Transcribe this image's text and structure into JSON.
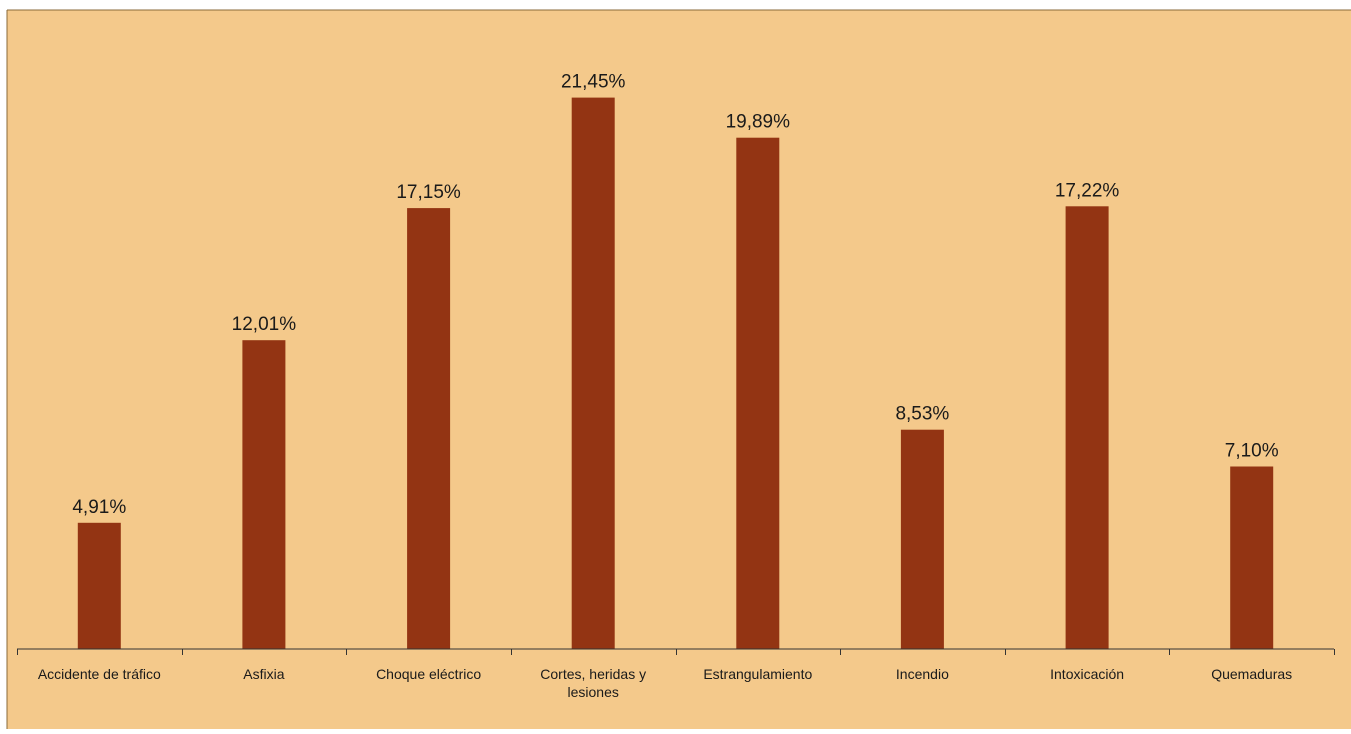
{
  "colors": {
    "plot_background": "#f4c98b",
    "bar": "#933413",
    "axis": "#333333",
    "text": "#1a1a1a"
  },
  "chart_data": {
    "type": "bar",
    "title": "",
    "xlabel": "",
    "ylabel": "",
    "ylim": [
      0,
      24
    ],
    "grid": false,
    "legend": "none",
    "categories": [
      [
        "Accidente de tráfico"
      ],
      [
        "Asfixia"
      ],
      [
        "Choque eléctrico"
      ],
      [
        "Cortes, heridas y",
        "lesiones"
      ],
      [
        "Estrangulamiento"
      ],
      [
        "Incendio"
      ],
      [
        "Intoxicación"
      ],
      [
        "Quemaduras"
      ]
    ],
    "values": [
      4.91,
      12.01,
      17.15,
      21.45,
      19.89,
      8.53,
      17.22,
      7.1
    ],
    "value_labels": [
      "4,91%",
      "12,01%",
      "17,15%",
      "21,45%",
      "19,89%",
      "8,53%",
      "17,22%",
      "7,10%"
    ]
  }
}
